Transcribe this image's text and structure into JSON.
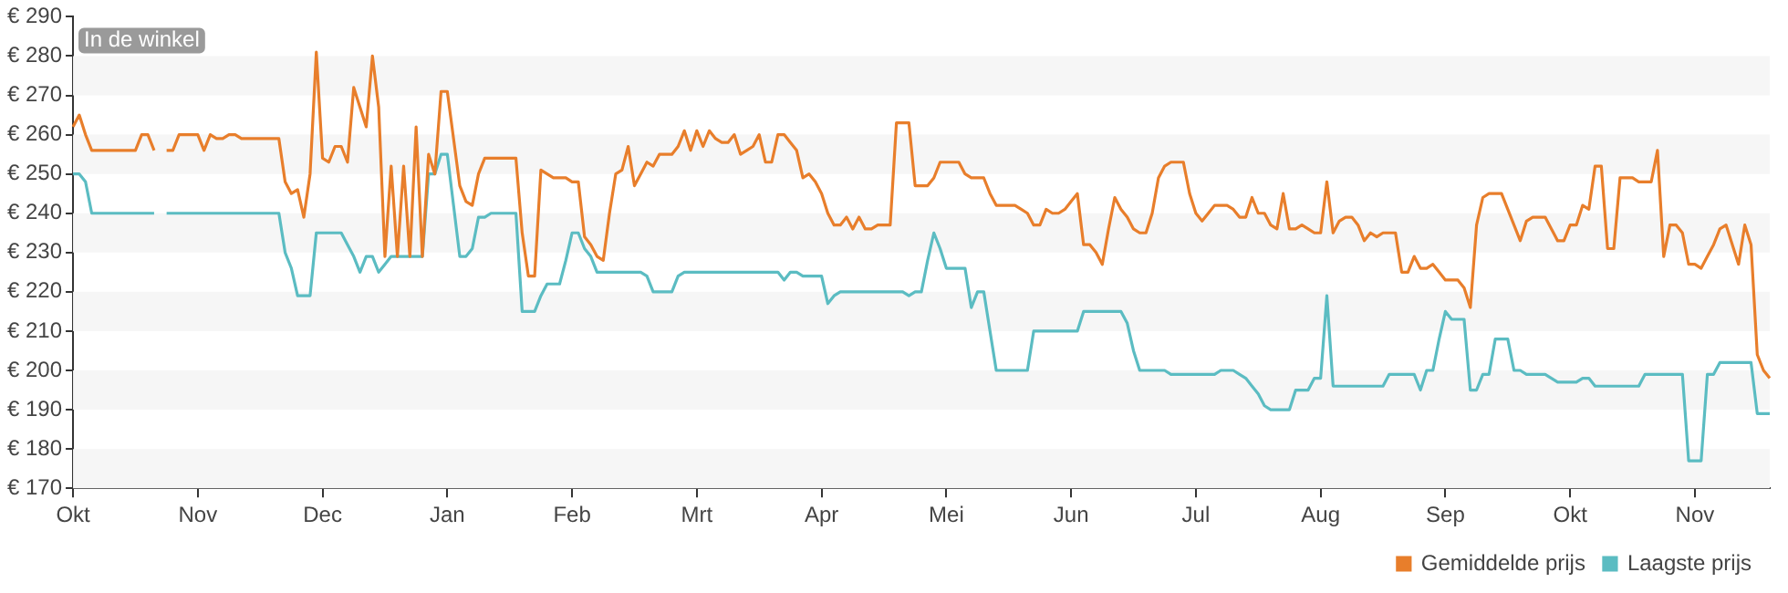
{
  "chart_data": {
    "type": "line",
    "annotations": [
      "In de winkel"
    ],
    "categories": [
      "Okt",
      null,
      null,
      null,
      null,
      null,
      null,
      null,
      null,
      null,
      null,
      null,
      null,
      null,
      null,
      null,
      null,
      null,
      null,
      null,
      "Nov",
      null,
      null,
      null,
      null,
      null,
      null,
      null,
      null,
      null,
      null,
      null,
      null,
      null,
      null,
      null,
      null,
      null,
      null,
      null,
      "Dec",
      null,
      null,
      null,
      null,
      null,
      null,
      null,
      null,
      null,
      null,
      null,
      null,
      null,
      null,
      null,
      null,
      null,
      null,
      null,
      "Jan",
      null,
      null,
      null,
      null,
      null,
      null,
      null,
      null,
      null,
      null,
      null,
      null,
      null,
      null,
      null,
      null,
      null,
      null,
      null,
      "Feb",
      null,
      null,
      null,
      null,
      null,
      null,
      null,
      null,
      null,
      null,
      null,
      null,
      null,
      null,
      null,
      null,
      null,
      null,
      null,
      "Mrt",
      null,
      null,
      null,
      null,
      null,
      null,
      null,
      null,
      null,
      null,
      null,
      null,
      null,
      null,
      null,
      null,
      null,
      null,
      null,
      "Apr",
      null,
      null,
      null,
      null,
      null,
      null,
      null,
      null,
      null,
      null,
      null,
      null,
      null,
      null,
      null,
      null,
      null,
      null,
      null,
      "Mei",
      null,
      null,
      null,
      null,
      null,
      null,
      null,
      null,
      null,
      null,
      null,
      null,
      null,
      null,
      null,
      null,
      null,
      null,
      null,
      "Jun",
      null,
      null,
      null,
      null,
      null,
      null,
      null,
      null,
      null,
      null,
      null,
      null,
      null,
      null,
      null,
      null,
      null,
      null,
      null,
      "Jul",
      null,
      null,
      null,
      null,
      null,
      null,
      null,
      null,
      null,
      null,
      null,
      null,
      null,
      null,
      null,
      null,
      null,
      null,
      null,
      "Aug",
      null,
      null,
      null,
      null,
      null,
      null,
      null,
      null,
      null,
      null,
      null,
      null,
      null,
      null,
      null,
      null,
      null,
      null,
      null,
      "Sep",
      null,
      null,
      null,
      null,
      null,
      null,
      null,
      null,
      null,
      null,
      null,
      null,
      null,
      null,
      null,
      null,
      null,
      null,
      null,
      "Okt",
      null,
      null,
      null,
      null,
      null,
      null,
      null,
      null,
      null,
      null,
      null,
      null,
      null,
      null,
      null,
      null,
      null,
      null,
      null,
      "Nov",
      null,
      null,
      null,
      null,
      null,
      null,
      null,
      null,
      null,
      null,
      null,
      null
    ],
    "ylim": [
      170,
      290
    ],
    "yticks": [
      {
        "value": 170,
        "label": "€ 170"
      },
      {
        "value": 180,
        "label": "€ 180"
      },
      {
        "value": 190,
        "label": "€ 190"
      },
      {
        "value": 200,
        "label": "€ 200"
      },
      {
        "value": 210,
        "label": "€ 210"
      },
      {
        "value": 220,
        "label": "€ 220"
      },
      {
        "value": 230,
        "label": "€ 230"
      },
      {
        "value": 240,
        "label": "€ 240"
      },
      {
        "value": 250,
        "label": "€ 250"
      },
      {
        "value": 260,
        "label": "€ 260"
      },
      {
        "value": 270,
        "label": "€ 270"
      },
      {
        "value": 280,
        "label": "€ 280"
      },
      {
        "value": 290,
        "label": "€ 290"
      }
    ],
    "legend": "bottom right",
    "marker": "none",
    "line_style": "solid",
    "series": [
      {
        "name": "Gemiddelde prijs",
        "color": "#e87e2b",
        "values": [
          262,
          265,
          260,
          256,
          256,
          256,
          256,
          256,
          256,
          256,
          256,
          260,
          260,
          256,
          null,
          256,
          256,
          260,
          260,
          260,
          260,
          256,
          260,
          259,
          259,
          260,
          260,
          259,
          259,
          259,
          259,
          259,
          259,
          259,
          248,
          245,
          246,
          239,
          250,
          281,
          254,
          253,
          257,
          257,
          253,
          272,
          267,
          262,
          280,
          267,
          229,
          252,
          229,
          252,
          229,
          262,
          229,
          255,
          250,
          271,
          271,
          259,
          247,
          243,
          242,
          250,
          254,
          254,
          254,
          254,
          254,
          254,
          235,
          224,
          224,
          251,
          250,
          249,
          249,
          249,
          248,
          248,
          234,
          232,
          229,
          228,
          240,
          250,
          251,
          257,
          247,
          250,
          253,
          252,
          255,
          255,
          255,
          257,
          261,
          256,
          261,
          257,
          261,
          259,
          258,
          258,
          260,
          255,
          256,
          257,
          260,
          253,
          253,
          260,
          260,
          258,
          256,
          249,
          250,
          248,
          245,
          240,
          237,
          237,
          239,
          236,
          239,
          236,
          236,
          237,
          237,
          237,
          263,
          263,
          263,
          247,
          247,
          247,
          249,
          253,
          253,
          253,
          253,
          250,
          249,
          249,
          249,
          245,
          242,
          242,
          242,
          242,
          241,
          240,
          237,
          237,
          241,
          240,
          240,
          241,
          243,
          245,
          232,
          232,
          230,
          227,
          236,
          244,
          241,
          239,
          236,
          235,
          235,
          240,
          249,
          252,
          253,
          253,
          253,
          245,
          240,
          238,
          240,
          242,
          242,
          242,
          241,
          239,
          239,
          244,
          240,
          240,
          237,
          236,
          245,
          236,
          236,
          237,
          236,
          235,
          235,
          248,
          235,
          238,
          239,
          239,
          237,
          233,
          235,
          234,
          235,
          235,
          235,
          225,
          225,
          229,
          226,
          226,
          227,
          225,
          223,
          223,
          223,
          221,
          216,
          237,
          244,
          245,
          245,
          245,
          241,
          237,
          233,
          238,
          239,
          239,
          239,
          236,
          233,
          233,
          237,
          237,
          242,
          241,
          252,
          252,
          231,
          231,
          249,
          249,
          249,
          248,
          248,
          248,
          256,
          229,
          237,
          237,
          235,
          227,
          227,
          226,
          229,
          232,
          236,
          237,
          232,
          227,
          237,
          232,
          204,
          200,
          198
        ]
      },
      {
        "name": "Laagste prijs",
        "color": "#5bbcc2",
        "values": [
          250,
          250,
          248,
          240,
          240,
          240,
          240,
          240,
          240,
          240,
          240,
          240,
          240,
          240,
          null,
          240,
          240,
          240,
          240,
          240,
          240,
          240,
          240,
          240,
          240,
          240,
          240,
          240,
          240,
          240,
          240,
          240,
          240,
          240,
          230,
          226,
          219,
          219,
          219,
          235,
          235,
          235,
          235,
          235,
          232,
          229,
          225,
          229,
          229,
          225,
          227,
          229,
          229,
          229,
          229,
          229,
          229,
          250,
          250,
          255,
          255,
          242,
          229,
          229,
          231,
          239,
          239,
          240,
          240,
          240,
          240,
          240,
          215,
          215,
          215,
          219,
          222,
          222,
          222,
          228,
          235,
          235,
          231,
          229,
          225,
          225,
          225,
          225,
          225,
          225,
          225,
          225,
          224,
          220,
          220,
          220,
          220,
          224,
          225,
          225,
          225,
          225,
          225,
          225,
          225,
          225,
          225,
          225,
          225,
          225,
          225,
          225,
          225,
          225,
          223,
          225,
          225,
          224,
          224,
          224,
          224,
          217,
          219,
          220,
          220,
          220,
          220,
          220,
          220,
          220,
          220,
          220,
          220,
          220,
          219,
          220,
          220,
          228,
          235,
          231,
          226,
          226,
          226,
          226,
          216,
          220,
          220,
          210,
          200,
          200,
          200,
          200,
          200,
          200,
          210,
          210,
          210,
          210,
          210,
          210,
          210,
          210,
          215,
          215,
          215,
          215,
          215,
          215,
          215,
          212,
          205,
          200,
          200,
          200,
          200,
          200,
          199,
          199,
          199,
          199,
          199,
          199,
          199,
          199,
          200,
          200,
          200,
          199,
          198,
          196,
          194,
          191,
          190,
          190,
          190,
          190,
          195,
          195,
          195,
          198,
          198,
          219,
          196,
          196,
          196,
          196,
          196,
          196,
          196,
          196,
          196,
          199,
          199,
          199,
          199,
          199,
          195,
          200,
          200,
          208,
          215,
          213,
          213,
          213,
          195,
          195,
          199,
          199,
          208,
          208,
          208,
          200,
          200,
          199,
          199,
          199,
          199,
          198,
          197,
          197,
          197,
          197,
          198,
          198,
          196,
          196,
          196,
          196,
          196,
          196,
          196,
          196,
          199,
          199,
          199,
          199,
          199,
          199,
          199,
          177,
          177,
          177,
          199,
          199,
          202,
          202,
          202,
          202,
          202,
          202,
          189,
          189,
          189
        ]
      }
    ]
  }
}
